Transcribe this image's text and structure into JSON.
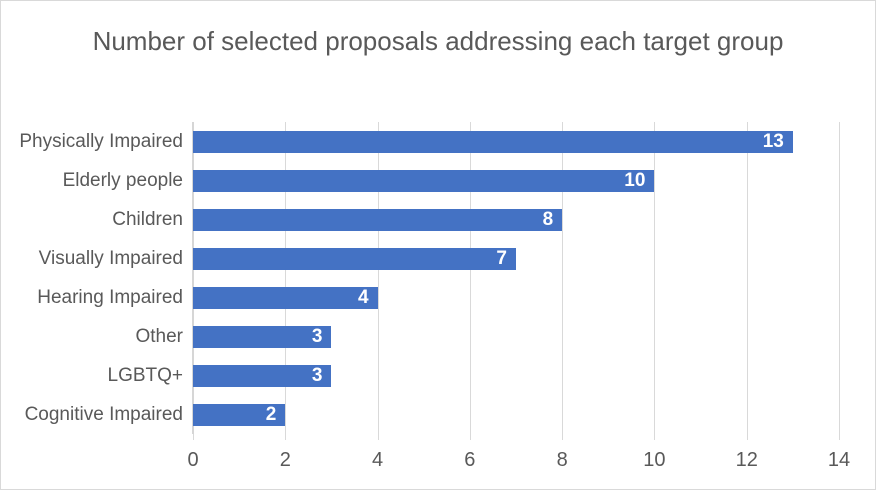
{
  "chart_data": {
    "type": "bar",
    "orientation": "horizontal",
    "title": "Number of selected proposals addressing each target group",
    "categories": [
      "Physically Impaired",
      "Elderly people",
      "Children",
      "Visually Impaired",
      "Hearing Impaired",
      "Other",
      "LGBTQ+",
      "Cognitive Impaired"
    ],
    "values": [
      13,
      10,
      8,
      7,
      4,
      3,
      3,
      2
    ],
    "xlabel": "",
    "ylabel": "",
    "xlim": [
      0,
      14
    ],
    "xticks": [
      0,
      2,
      4,
      6,
      8,
      10,
      12,
      14
    ],
    "grid": "vertical-major",
    "legend": "none",
    "data_labels": "inside-end-white-bold",
    "colors": {
      "bar": "#4472C4",
      "bar_label": "#FFFFFF",
      "text": "#595959",
      "gridline": "#D9D9D9",
      "axis_line": "#D6D6D6",
      "border": "#D9D9D9",
      "background": "#FFFFFF"
    }
  }
}
